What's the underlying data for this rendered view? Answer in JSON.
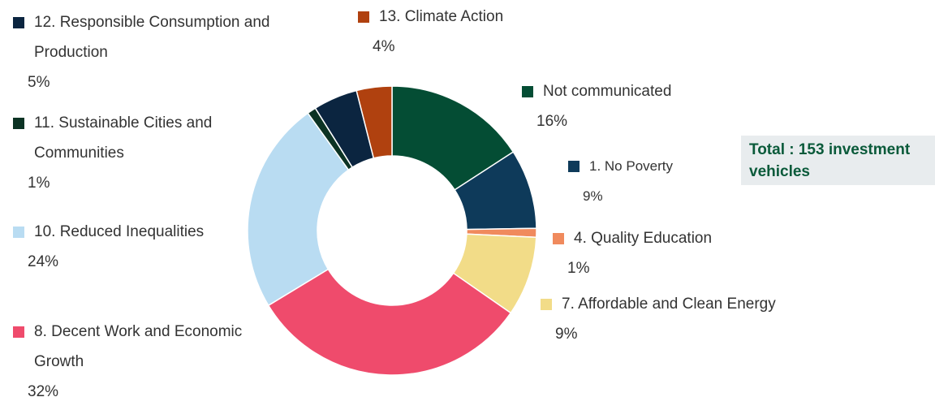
{
  "chart_data": {
    "type": "donut",
    "categories": [
      "Not communicated",
      "1. No Poverty",
      "4. Quality Education",
      "7. Affordable and Clean Energy",
      "8. Decent Work and Economic Growth",
      "10. Reduced Inequalities",
      "11. Sustainable Cities and Communities",
      "12. Responsible Consumption and Production",
      "13. Climate Action"
    ],
    "values": [
      16,
      9,
      1,
      9,
      32,
      24,
      1,
      5,
      4
    ],
    "value_labels": [
      "16%",
      "9%",
      "1%",
      "9%",
      "32%",
      "24%",
      "1%",
      "5%",
      "4%"
    ],
    "colors": [
      "#044d34",
      "#0e3a5a",
      "#f08a5d",
      "#f2dc88",
      "#ef4b6c",
      "#b9dcf2",
      "#0c3324",
      "#0b2540",
      "#b0410f"
    ],
    "annotation": "Total : 153 investment vehicles"
  }
}
